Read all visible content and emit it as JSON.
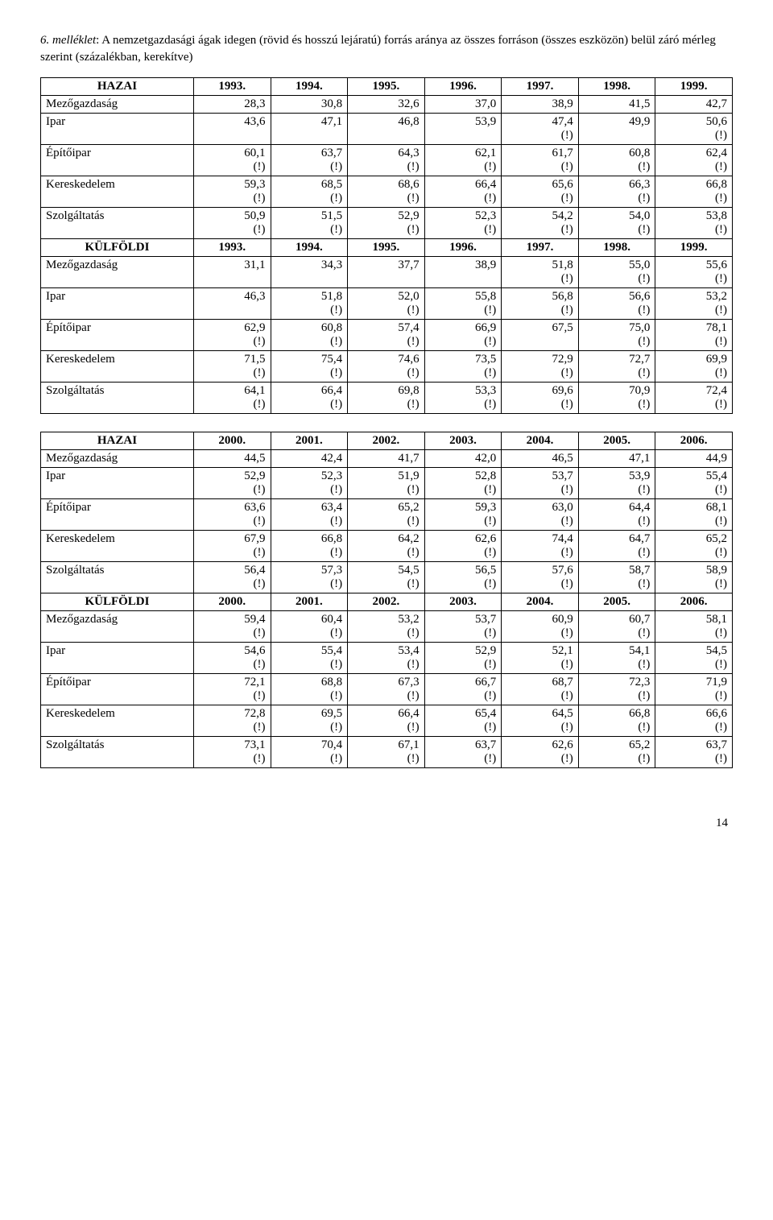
{
  "title_prefix": "6. melléklet",
  "title_main": ": A nemzetgazdasági ágak idegen (rövid és hosszú lejáratú) forrás aránya az összes forráson (összes eszközön) belül záró mérleg szerint (százalékban, kerekítve)",
  "page_number": "14",
  "excl": "(!)",
  "row_labels": {
    "hazai": "HAZAI",
    "kulfoldi": "KÜLFÖLDI",
    "mezo": "Mezőgazdaság",
    "ipar": "Ipar",
    "epito": "Építőipar",
    "ker": "Kereskedelem",
    "szolg": "Szolgáltatás"
  },
  "years_a": [
    "1993.",
    "1994.",
    "1995.",
    "1996.",
    "1997.",
    "1998.",
    "1999."
  ],
  "years_b": [
    "2000.",
    "2001.",
    "2002.",
    "2003.",
    "2004.",
    "2005.",
    "2006."
  ],
  "table1": {
    "hazai_mezo": {
      "v": [
        "28,3",
        "30,8",
        "32,6",
        "37,0",
        "38,9",
        "41,5",
        "42,7"
      ],
      "e": [
        0,
        0,
        0,
        0,
        0,
        0,
        0
      ]
    },
    "hazai_ipar": {
      "v": [
        "43,6",
        "47,1",
        "46,8",
        "53,9",
        "47,4",
        "49,9",
        "50,6"
      ],
      "e": [
        0,
        0,
        0,
        0,
        1,
        0,
        1
      ]
    },
    "hazai_epito": {
      "v": [
        "60,1",
        "63,7",
        "64,3",
        "62,1",
        "61,7",
        "60,8",
        "62,4"
      ],
      "e": [
        1,
        1,
        1,
        1,
        1,
        1,
        1
      ]
    },
    "hazai_ker": {
      "v": [
        "59,3",
        "68,5",
        "68,6",
        "66,4",
        "65,6",
        "66,3",
        "66,8"
      ],
      "e": [
        1,
        1,
        1,
        1,
        1,
        1,
        1
      ]
    },
    "hazai_szolg": {
      "v": [
        "50,9",
        "51,5",
        "52,9",
        "52,3",
        "54,2",
        "54,0",
        "53,8"
      ],
      "e": [
        1,
        1,
        1,
        1,
        1,
        1,
        1
      ]
    },
    "kul_mezo": {
      "v": [
        "31,1",
        "34,3",
        "37,7",
        "38,9",
        "51,8",
        "55,0",
        "55,6"
      ],
      "e": [
        0,
        0,
        0,
        0,
        1,
        1,
        1
      ]
    },
    "kul_ipar": {
      "v": [
        "46,3",
        "51,8",
        "52,0",
        "55,8",
        "56,8",
        "56,6",
        "53,2"
      ],
      "e": [
        0,
        1,
        1,
        1,
        1,
        1,
        1
      ]
    },
    "kul_epito": {
      "v": [
        "62,9",
        "60,8",
        "57,4",
        "66,9",
        "67,5",
        "75,0",
        "78,1"
      ],
      "e": [
        1,
        1,
        1,
        1,
        0,
        1,
        1
      ]
    },
    "kul_ker": {
      "v": [
        "71,5",
        "75,4",
        "74,6",
        "73,5",
        "72,9",
        "72,7",
        "69,9"
      ],
      "e": [
        1,
        1,
        1,
        1,
        1,
        1,
        1
      ]
    },
    "kul_szolg": {
      "v": [
        "64,1",
        "66,4",
        "69,8",
        "53,3",
        "69,6",
        "70,9",
        "72,4"
      ],
      "e": [
        1,
        1,
        1,
        1,
        1,
        1,
        1
      ]
    }
  },
  "table2": {
    "hazai_mezo": {
      "v": [
        "44,5",
        "42,4",
        "41,7",
        "42,0",
        "46,5",
        "47,1",
        "44,9"
      ],
      "e": [
        0,
        0,
        0,
        0,
        0,
        0,
        0
      ]
    },
    "hazai_ipar": {
      "v": [
        "52,9",
        "52,3",
        "51,9",
        "52,8",
        "53,7",
        "53,9",
        "55,4"
      ],
      "e": [
        1,
        1,
        1,
        1,
        1,
        1,
        1
      ]
    },
    "hazai_epito": {
      "v": [
        "63,6",
        "63,4",
        "65,2",
        "59,3",
        "63,0",
        "64,4",
        "68,1"
      ],
      "e": [
        1,
        1,
        1,
        1,
        1,
        1,
        1
      ]
    },
    "hazai_ker": {
      "v": [
        "67,9",
        "66,8",
        "64,2",
        "62,6",
        "74,4",
        "64,7",
        "65,2"
      ],
      "e": [
        1,
        1,
        1,
        1,
        1,
        1,
        1
      ]
    },
    "hazai_szolg": {
      "v": [
        "56,4",
        "57,3",
        "54,5",
        "56,5",
        "57,6",
        "58,7",
        "58,9"
      ],
      "e": [
        1,
        1,
        1,
        1,
        1,
        1,
        1
      ]
    },
    "kul_mezo": {
      "v": [
        "59,4",
        "60,4",
        "53,2",
        "53,7",
        "60,9",
        "60,7",
        "58,1"
      ],
      "e": [
        1,
        1,
        1,
        1,
        1,
        1,
        1
      ]
    },
    "kul_ipar": {
      "v": [
        "54,6",
        "55,4",
        "53,4",
        "52,9",
        "52,1",
        "54,1",
        "54,5"
      ],
      "e": [
        1,
        1,
        1,
        1,
        1,
        1,
        1
      ]
    },
    "kul_epito": {
      "v": [
        "72,1",
        "68,8",
        "67,3",
        "66,7",
        "68,7",
        "72,3",
        "71,9"
      ],
      "e": [
        1,
        1,
        1,
        1,
        1,
        1,
        1
      ]
    },
    "kul_ker": {
      "v": [
        "72,8",
        "69,5",
        "66,4",
        "65,4",
        "64,5",
        "66,8",
        "66,6"
      ],
      "e": [
        1,
        1,
        1,
        1,
        1,
        1,
        1
      ]
    },
    "kul_szolg": {
      "v": [
        "73,1",
        "70,4",
        "67,1",
        "63,7",
        "62,6",
        "65,2",
        "63,7"
      ],
      "e": [
        1,
        1,
        1,
        1,
        1,
        1,
        1
      ]
    }
  }
}
